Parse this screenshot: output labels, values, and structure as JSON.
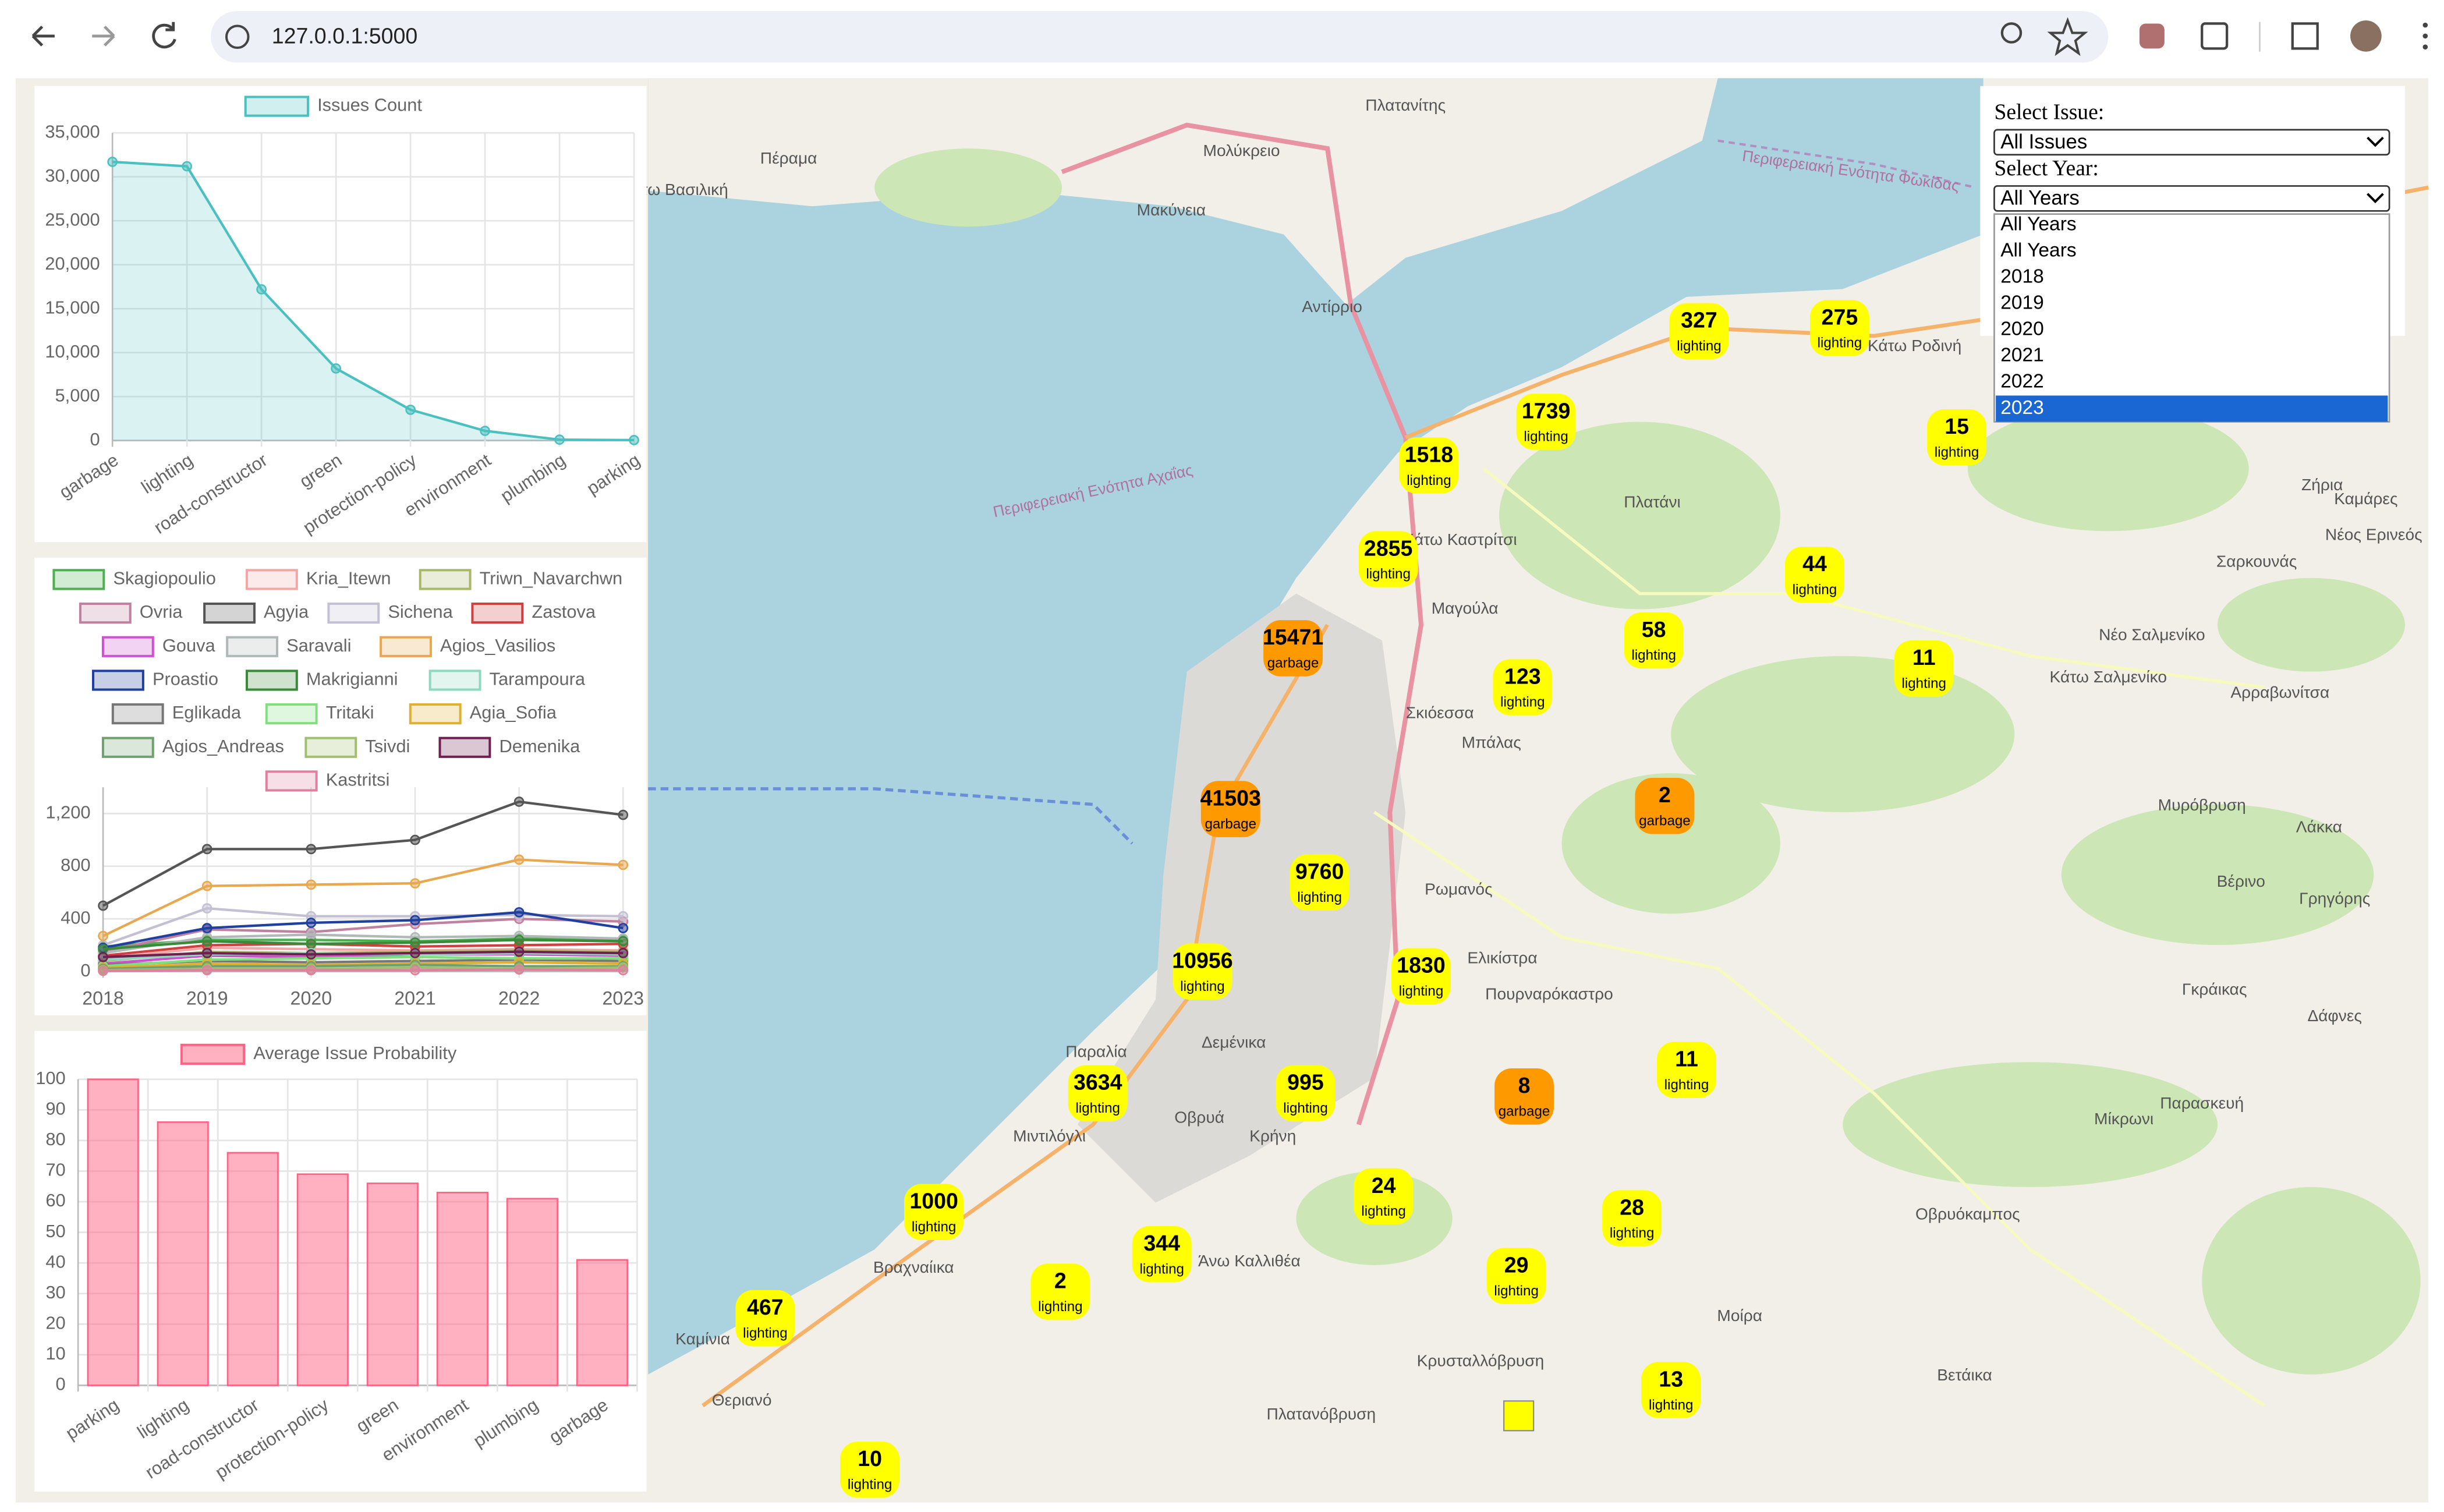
{
  "browser": {
    "url": "127.0.0.1:5000"
  },
  "controls": {
    "issue_label": "Select Issue:",
    "issue_value": "All Issues",
    "year_label": "Select Year:",
    "year_value": "All Years",
    "year_options": [
      "All Years",
      "All Years",
      "2018",
      "2019",
      "2020",
      "2021",
      "2022",
      "2023"
    ]
  },
  "chart_data": [
    {
      "type": "line",
      "area": true,
      "legend": "Issues Count",
      "color": "#4bc0c0",
      "categories": [
        "garbage",
        "lighting",
        "road-constructor",
        "green",
        "protection-policy",
        "environment",
        "plumbing",
        "parking"
      ],
      "values": [
        31700,
        31200,
        17200,
        8200,
        3500,
        1100,
        100,
        50
      ],
      "ylim": [
        0,
        35000
      ],
      "yticks": [
        0,
        {
          "value": 5000,
          "label": "5,000"
        },
        {
          "value": 10000,
          "label": "10,000"
        },
        {
          "value": 15000,
          "label": "15,000"
        },
        {
          "value": 20000,
          "label": "20,000"
        },
        {
          "value": 25000,
          "label": "25,000"
        },
        {
          "value": 30000,
          "label": "30,000"
        },
        {
          "value": 35000,
          "label": "35,000"
        }
      ],
      "grid": true
    },
    {
      "type": "line",
      "categories": [
        "2018",
        "2019",
        "2020",
        "2021",
        "2022",
        "2023"
      ],
      "ylim": [
        0,
        1400
      ],
      "yticks": [
        0,
        400,
        800,
        {
          "value": 1200,
          "label": "1,200"
        }
      ],
      "grid": true,
      "series": [
        {
          "name": "Skagiopoulio",
          "color": "#4caf50",
          "values": [
            190,
            240,
            240,
            230,
            250,
            240
          ]
        },
        {
          "name": "Kria_Itewn",
          "color": "#f4a6a6",
          "values": [
            100,
            180,
            170,
            160,
            170,
            160
          ]
        },
        {
          "name": "Triwn_Navarchwn",
          "color": "#a8b868",
          "values": [
            80,
            150,
            140,
            150,
            160,
            150
          ]
        },
        {
          "name": "Ovria",
          "color": "#c080a0",
          "values": [
            150,
            320,
            300,
            360,
            400,
            380
          ]
        },
        {
          "name": "Agyia",
          "color": "#555555",
          "values": [
            500,
            930,
            930,
            1000,
            1290,
            1190
          ]
        },
        {
          "name": "Sichena",
          "color": "#c4c0d4",
          "values": [
            200,
            480,
            420,
            420,
            430,
            420
          ]
        },
        {
          "name": "Zastova",
          "color": "#d04040",
          "values": [
            120,
            200,
            210,
            190,
            200,
            210
          ]
        },
        {
          "name": "Gouva",
          "color": "#d050d0",
          "values": [
            60,
            120,
            110,
            130,
            130,
            120
          ]
        },
        {
          "name": "Saravali",
          "color": "#b0b8b8",
          "values": [
            140,
            260,
            280,
            260,
            270,
            250
          ]
        },
        {
          "name": "Agios_Vasilios",
          "color": "#e8a850",
          "values": [
            270,
            650,
            660,
            670,
            850,
            810
          ]
        },
        {
          "name": "Proastio",
          "color": "#2040a0",
          "values": [
            180,
            330,
            370,
            390,
            450,
            330
          ]
        },
        {
          "name": "Makrigianni",
          "color": "#3a8a3a",
          "values": [
            170,
            230,
            210,
            220,
            240,
            230
          ]
        },
        {
          "name": "Tarampoura",
          "color": "#90d8c0",
          "values": [
            90,
            130,
            140,
            130,
            140,
            130
          ]
        },
        {
          "name": "Eglikada",
          "color": "#777777",
          "values": [
            50,
            80,
            70,
            80,
            90,
            80
          ]
        },
        {
          "name": "Tritaki",
          "color": "#80e080",
          "values": [
            40,
            90,
            100,
            110,
            100,
            100
          ]
        },
        {
          "name": "Agia_Sofia",
          "color": "#e0b030",
          "values": [
            30,
            60,
            50,
            60,
            70,
            60
          ]
        },
        {
          "name": "Agios_Andreas",
          "color": "#70a070",
          "values": [
            20,
            40,
            40,
            50,
            40,
            40
          ]
        },
        {
          "name": "Tsivdi",
          "color": "#a0c070",
          "values": [
            10,
            20,
            20,
            30,
            20,
            30
          ]
        },
        {
          "name": "Demenika",
          "color": "#702050",
          "values": [
            110,
            140,
            130,
            140,
            150,
            140
          ]
        },
        {
          "name": "Kastritsi",
          "color": "#e080a0",
          "values": [
            5,
            10,
            10,
            10,
            15,
            10
          ]
        }
      ]
    },
    {
      "type": "bar",
      "legend": "Average Issue Probability",
      "color": "#ff6384",
      "categories": [
        "parking",
        "lighting",
        "road-constructor",
        "protection-policy",
        "green",
        "environment",
        "plumbing",
        "garbage"
      ],
      "values": [
        100,
        86,
        76,
        69,
        66,
        63,
        61,
        41
      ],
      "ylim": [
        0,
        100
      ],
      "yticks": [
        0,
        10,
        20,
        30,
        40,
        50,
        60,
        70,
        80,
        90,
        100
      ],
      "grid": true
    }
  ],
  "map": {
    "markers": [
      {
        "count": 327,
        "label": "lighting",
        "color": "#ffff00"
      },
      {
        "count": 275,
        "label": "lighting",
        "color": "#ffff00"
      },
      {
        "count": 1739,
        "label": "lighting",
        "color": "#ffff00"
      },
      {
        "count": 1518,
        "label": "lighting",
        "color": "#ffff00"
      },
      {
        "count": 15,
        "label": "lighting",
        "color": "#ffff00"
      },
      {
        "count": 2855,
        "label": "lighting",
        "color": "#ffff00"
      },
      {
        "count": 44,
        "label": "lighting",
        "color": "#ffff00"
      },
      {
        "count": 15471,
        "label": "garbage",
        "color": "#ff9900"
      },
      {
        "count": 58,
        "label": "lighting",
        "color": "#ffff00"
      },
      {
        "count": 11,
        "label": "lighting",
        "color": "#ffff00"
      },
      {
        "count": 123,
        "label": "lighting",
        "color": "#ffff00"
      },
      {
        "count": 2,
        "label": "garbage",
        "color": "#ff9900"
      },
      {
        "count": 41503,
        "label": "garbage",
        "color": "#ff9900"
      },
      {
        "count": 9760,
        "label": "lighting",
        "color": "#ffff00"
      },
      {
        "count": 10956,
        "label": "lighting",
        "color": "#ffff00"
      },
      {
        "count": 1830,
        "label": "lighting",
        "color": "#ffff00"
      },
      {
        "count": 11,
        "label": "lighting",
        "color": "#ffff00"
      },
      {
        "count": 3634,
        "label": "lighting",
        "color": "#ffff00"
      },
      {
        "count": 995,
        "label": "lighting",
        "color": "#ffff00"
      },
      {
        "count": 8,
        "label": "garbage",
        "color": "#ff9900"
      },
      {
        "count": 24,
        "label": "lighting",
        "color": "#ffff00"
      },
      {
        "count": 1000,
        "label": "lighting",
        "color": "#ffff00"
      },
      {
        "count": 28,
        "label": "lighting",
        "color": "#ffff00"
      },
      {
        "count": 344,
        "label": "lighting",
        "color": "#ffff00"
      },
      {
        "count": 29,
        "label": "lighting",
        "color": "#ffff00"
      },
      {
        "count": 2,
        "label": "lighting",
        "color": "#ffff00"
      },
      {
        "count": 467,
        "label": "lighting",
        "color": "#ffff00"
      },
      {
        "count": 13,
        "label": "lighting",
        "color": "#ffff00"
      },
      {
        "count": 10,
        "label": "lighting",
        "color": "#ffff00"
      }
    ],
    "places": [
      "Πλατανίτης",
      "Μολύκρειο",
      "Πέραμα",
      "Κάτω Βασιλική",
      "Μακύνεια",
      "Αντίρριο",
      "Πλατάνι",
      "Κάτω Καστρίτσι",
      "Μαγούλα",
      "Σκιόεσσα",
      "Μπάλας",
      "Ρωμανός",
      "Ελικίστρα",
      "Πουρναρόκαστρο",
      "Παραλία",
      "Δεμένικα",
      "Οβρυά",
      "Μιντιλόγλι",
      "Κρήνη",
      "Βραχναίικα",
      "Άνω Καλλιθέα",
      "Κρυσταλλόβρυση",
      "Πλατανόβρυση",
      "Θεριανό",
      "Καμίνια",
      "Μοίρα",
      "Βετάικα",
      "Οβρυόκαμπος",
      "Μίκρωνι",
      "Παρασκευή",
      "Δάφνες",
      "Γκράικας",
      "Βέρινο",
      "Γρηγόρης",
      "Λάκκα",
      "Μυρόβρυση",
      "Αρραβωνίτσα",
      "Κάτω Σαλμενίκο",
      "Νέο Σαλμενίκο",
      "Σαρκουνάς",
      "Ζήρια",
      "Καμάρες",
      "Νέος Ερινεός",
      "Κάτω Ροδινή",
      "Περιφερειακή Ενότητα Αχαΐας",
      "Περιφερειακή Ενότητα Φωκίδας"
    ]
  }
}
